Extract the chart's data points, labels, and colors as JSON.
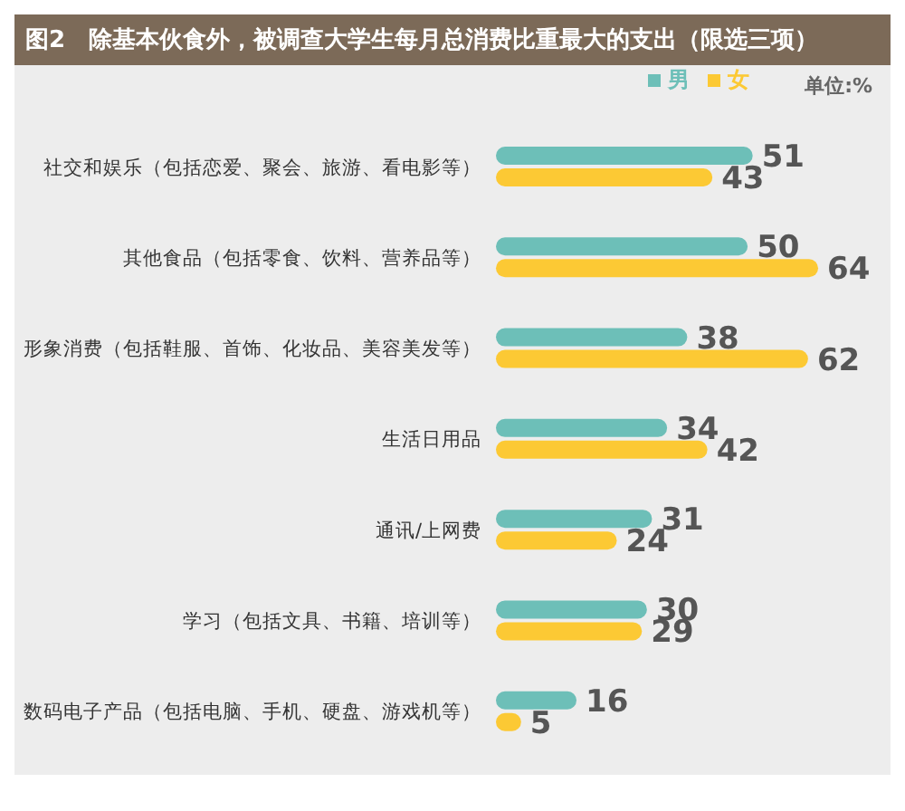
{
  "chart_data": {
    "type": "bar",
    "orientation": "horizontal",
    "title": "图2　除基本伙食外，被调查大学生每月总消费比重最大的支出（限选三项）",
    "categories": [
      "社交和娱乐（包括恋爱、聚会、旅游、看电影等）",
      "其他食品（包括零食、饮料、营养品等）",
      "形象消费（包括鞋服、首饰、化妆品、美容美发等）",
      "生活日用品",
      "通讯/上网费",
      "学习（包括文具、书籍、培训等）",
      "数码电子产品（包括电脑、手机、硬盘、游戏机等）"
    ],
    "series": [
      {
        "name": "男",
        "color": "#6dbfb8",
        "values": [
          51,
          50,
          38,
          34,
          31,
          30,
          16
        ]
      },
      {
        "name": "女",
        "color": "#fcc934",
        "values": [
          43,
          64,
          62,
          42,
          24,
          29,
          5
        ]
      }
    ],
    "data_labels": true,
    "legend": "top right",
    "grid": false,
    "annotations": [
      "单位:%"
    ]
  }
}
